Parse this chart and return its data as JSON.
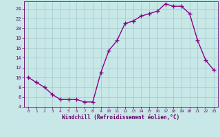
{
  "x": [
    0,
    1,
    2,
    3,
    4,
    5,
    6,
    7,
    8,
    9,
    10,
    11,
    12,
    13,
    14,
    15,
    16,
    17,
    18,
    19,
    20,
    21,
    22,
    23
  ],
  "y": [
    10,
    9,
    8,
    6.5,
    5.5,
    5.5,
    5.5,
    5,
    5,
    11,
    15.5,
    17.5,
    21,
    21.5,
    22.5,
    23,
    23.5,
    25,
    24.5,
    24.5,
    23,
    17.5,
    13.5,
    11.5
  ],
  "line_color": "#880088",
  "marker": "+",
  "markersize": 4,
  "bg_color": "#c8e8e8",
  "grid_color": "#aacccc",
  "xlabel": "Windchill (Refroidissement éolien,°C)",
  "xlabel_color": "#660066",
  "tick_color": "#660066",
  "spine_color": "#660066",
  "ylim": [
    4,
    25.5
  ],
  "xlim": [
    -0.5,
    23.5
  ],
  "yticks": [
    4,
    6,
    8,
    10,
    12,
    14,
    16,
    18,
    20,
    22,
    24
  ],
  "xticks": [
    0,
    1,
    2,
    3,
    4,
    5,
    6,
    7,
    8,
    9,
    10,
    11,
    12,
    13,
    14,
    15,
    16,
    17,
    18,
    19,
    20,
    21,
    22,
    23
  ]
}
